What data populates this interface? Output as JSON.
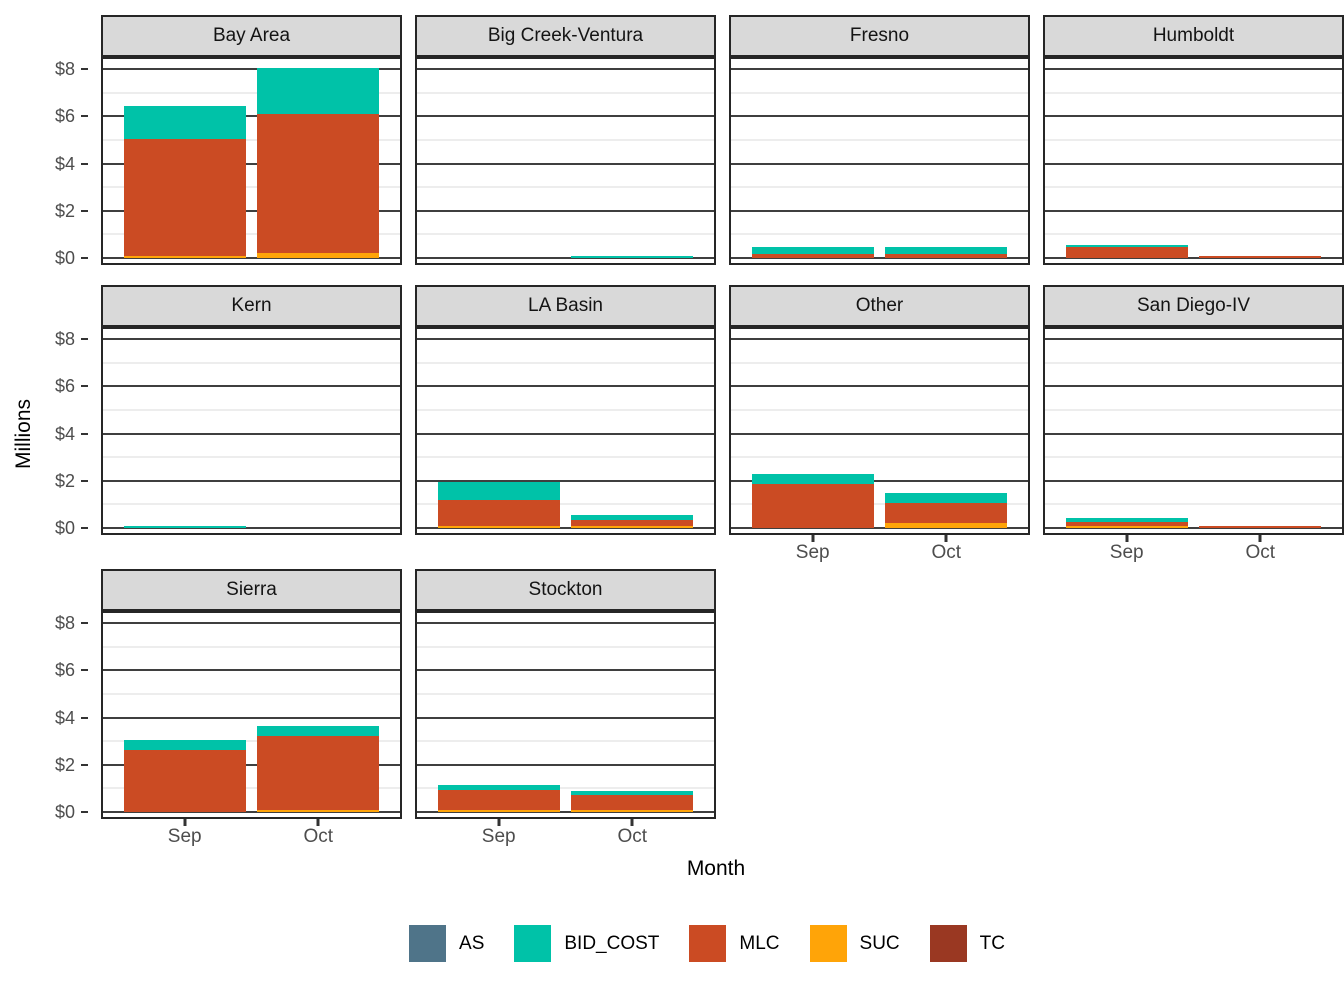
{
  "chart_data": {
    "type": "bar",
    "stacked": true,
    "title": "",
    "xlabel": "Month",
    "ylabel": "Millions",
    "unit": "millions of dollars",
    "categories": [
      "Sep",
      "Oct"
    ],
    "y_ticks": [
      "$0",
      "$2",
      "$4",
      "$6",
      "$8"
    ],
    "ylim": [
      0,
      8.6
    ],
    "grid": "major-dark, minor-light",
    "legend": {
      "position": "bottom",
      "entries": [
        "AS",
        "BID_COST",
        "MLC",
        "SUC",
        "TC"
      ]
    },
    "series_colors": {
      "AS": "#4f7489",
      "BID_COST": "#00c2a8",
      "MLC": "#cb4b23",
      "SUC": "#ffa408",
      "TC": "#9a3822"
    },
    "stack_order_bottom_to_top": [
      "TC",
      "SUC",
      "MLC",
      "BID_COST",
      "AS"
    ],
    "facets": [
      {
        "title": "Bay Area",
        "row": 0,
        "show_x_axis": false,
        "values": {
          "Sep": {
            "SUC": 0.1,
            "MLC": 4.95,
            "BID_COST": 1.4
          },
          "Oct": {
            "SUC": 0.2,
            "MLC": 5.9,
            "BID_COST": 1.95
          }
        }
      },
      {
        "title": "Big Creek-Ventura",
        "row": 0,
        "show_x_axis": false,
        "values": {
          "Sep": {},
          "Oct": {
            "BID_COST": 0.05
          }
        }
      },
      {
        "title": "Fresno",
        "row": 0,
        "show_x_axis": false,
        "values": {
          "Sep": {
            "MLC": 0.18,
            "BID_COST": 0.28
          },
          "Oct": {
            "MLC": 0.15,
            "BID_COST": 0.33
          }
        }
      },
      {
        "title": "Humboldt",
        "row": 0,
        "show_x_axis": false,
        "values": {
          "Sep": {
            "MLC": 0.45,
            "BID_COST": 0.05
          },
          "Oct": {
            "MLC": 0.08
          }
        }
      },
      {
        "title": "Kern",
        "row": 1,
        "show_x_axis": false,
        "values": {
          "Sep": {
            "BID_COST": 0.05
          },
          "Oct": {}
        }
      },
      {
        "title": "LA Basin",
        "row": 1,
        "show_x_axis": false,
        "values": {
          "Sep": {
            "SUC": 0.06,
            "MLC": 1.1,
            "BID_COST": 0.76
          },
          "Oct": {
            "SUC": 0.05,
            "MLC": 0.22,
            "BID_COST": 0.22
          }
        }
      },
      {
        "title": "Other",
        "row": 1,
        "show_x_axis": true,
        "values": {
          "Sep": {
            "MLC": 1.87,
            "BID_COST": 0.43
          },
          "Oct": {
            "SUC": 0.22,
            "MLC": 0.85,
            "BID_COST": 0.4
          }
        }
      },
      {
        "title": "San Diego-IV",
        "row": 1,
        "show_x_axis": true,
        "values": {
          "Sep": {
            "SUC": 0.04,
            "MLC": 0.17,
            "BID_COST": 0.16
          },
          "Oct": {
            "MLC": 0.04
          }
        }
      },
      {
        "title": "Sierra",
        "row": 2,
        "show_x_axis": true,
        "values": {
          "Sep": {
            "MLC": 2.62,
            "BID_COST": 0.42
          },
          "Oct": {
            "SUC": 0.05,
            "MLC": 3.12,
            "BID_COST": 0.42
          }
        }
      },
      {
        "title": "Stockton",
        "row": 2,
        "show_x_axis": true,
        "values": {
          "Sep": {
            "SUC": 0.03,
            "MLC": 0.82,
            "BID_COST": 0.2
          },
          "Oct": {
            "SUC": 0.07,
            "MLC": 0.62,
            "BID_COST": 0.16
          }
        }
      }
    ],
    "style": {
      "strip_background": "#d9d9d9",
      "panel_border": "#262626",
      "major_gridline": "#3f3f3f",
      "minor_gridline": "#ededed",
      "tick_label_color": "#4d4d4d",
      "background": "#ffffff"
    }
  }
}
